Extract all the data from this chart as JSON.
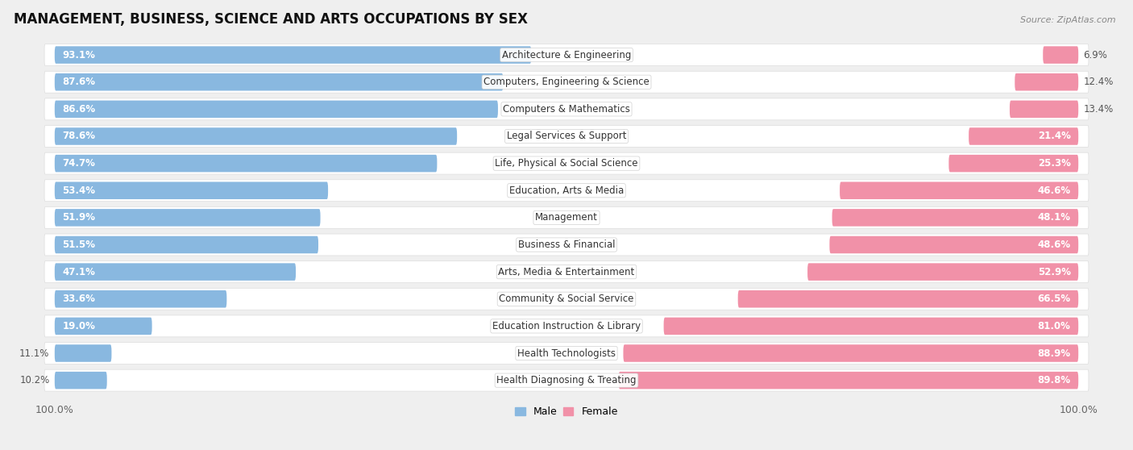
{
  "title": "MANAGEMENT, BUSINESS, SCIENCE AND ARTS OCCUPATIONS BY SEX",
  "source": "Source: ZipAtlas.com",
  "categories": [
    "Architecture & Engineering",
    "Computers, Engineering & Science",
    "Computers & Mathematics",
    "Legal Services & Support",
    "Life, Physical & Social Science",
    "Education, Arts & Media",
    "Management",
    "Business & Financial",
    "Arts, Media & Entertainment",
    "Community & Social Service",
    "Education Instruction & Library",
    "Health Technologists",
    "Health Diagnosing & Treating"
  ],
  "male": [
    93.1,
    87.6,
    86.6,
    78.6,
    74.7,
    53.4,
    51.9,
    51.5,
    47.1,
    33.6,
    19.0,
    11.1,
    10.2
  ],
  "female": [
    6.9,
    12.4,
    13.4,
    21.4,
    25.3,
    46.6,
    48.1,
    48.6,
    52.9,
    66.5,
    81.0,
    88.9,
    89.8
  ],
  "male_color": "#89b8e0",
  "female_color": "#f191a8",
  "bg_color": "#efefef",
  "row_bg_color": "#ffffff",
  "bar_height": 0.62,
  "title_fontsize": 12,
  "label_fontsize": 8.5,
  "tick_fontsize": 9,
  "pct_label_threshold": 18
}
